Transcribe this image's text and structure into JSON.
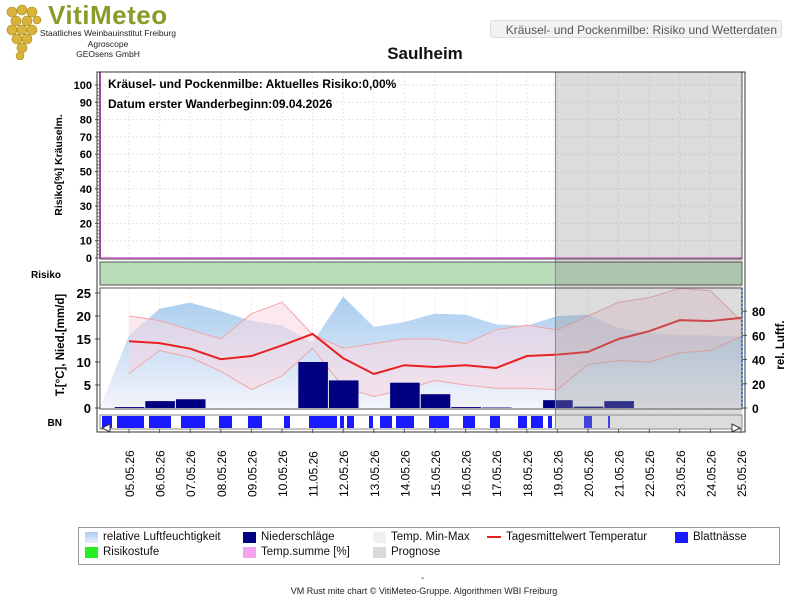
{
  "header": {
    "logo_text": "VitiMeteo",
    "org_lines": [
      "Staatliches Weinbauinstitut Freiburg",
      "Agroscope",
      "GEOsens GmbH"
    ],
    "page_label": "Kräusel- und Pockenmilbe: Risiko und Wetterdaten"
  },
  "chart_data": {
    "type": "line",
    "title": "Saulheim",
    "annotations": {
      "risk_text": "Kräusel- und Pockenmilbe: Aktuelles Risiko:0,00%",
      "date_text": "Datum erster Wanderbeginn:09.04.2026"
    },
    "x": [
      "05.05.26",
      "06.05.26",
      "07.05.26",
      "08.05.26",
      "09.05.26",
      "10.05.26",
      "11.05.26",
      "12.05.26",
      "13.05.26",
      "14.05.26",
      "15.05.26",
      "16.05.26",
      "17.05.26",
      "18.05.26",
      "19.05.26",
      "20.05.26",
      "21.05.26",
      "22.05.26",
      "23.05.26",
      "24.05.26",
      "25.05.26"
    ],
    "forecast_from": "19.05.26",
    "risk_panel": {
      "ylabel": "Risiko[%] Kräuselm.",
      "ylim": [
        0,
        100
      ],
      "yticks": [
        0,
        10,
        20,
        30,
        40,
        50,
        60,
        70,
        80,
        90,
        100
      ],
      "risk_values": [
        0,
        0,
        0,
        0,
        0,
        0,
        0,
        0,
        0,
        0,
        0,
        0,
        0,
        0,
        0,
        0,
        0,
        0,
        0,
        0,
        0
      ]
    },
    "risk_band_label": "Risiko",
    "weather_panel": {
      "ylabel_left": "T.[°C], Nied.[mm/d]",
      "ylabel_right": "rel. Luftf.",
      "ylim_left": [
        0,
        25
      ],
      "yticks_left": [
        0,
        5,
        10,
        15,
        20,
        25
      ],
      "ylim_right": [
        0,
        95
      ],
      "yticks_right": [
        0,
        20,
        40,
        60,
        80
      ],
      "series": [
        {
          "name": "Tagesmittelwert Temperatur",
          "color": "#e82020",
          "values": [
            14.5,
            14.1,
            12.9,
            10.6,
            11.3,
            13.6,
            16.1,
            10.8,
            7.4,
            9.3,
            8.9,
            9.3,
            8.7,
            11.3,
            11.6,
            12.2,
            15,
            16.7,
            19.1,
            18.9,
            19.6
          ]
        },
        {
          "name": "Temp. Min-Max (Min)",
          "color": "#f3a5a5",
          "values": [
            7.5,
            12.5,
            11,
            8,
            4,
            7,
            13,
            4.5,
            2.5,
            4,
            6,
            5,
            4.3,
            4.3,
            4,
            9.5,
            10.3,
            10,
            12,
            12.5,
            15.5
          ]
        },
        {
          "name": "Temp. Min-Max (Max)",
          "color": "#f3a5a5",
          "values": [
            20,
            19,
            17,
            15,
            20.5,
            23,
            16,
            13,
            14,
            15,
            15,
            14,
            17,
            18,
            17,
            20,
            23,
            24,
            26,
            25.5,
            19
          ]
        },
        {
          "name": "relative Luftfeuchtigkeit",
          "color": "#a8cdef",
          "values": [
            60,
            82,
            87,
            80,
            72,
            68,
            54,
            92,
            67,
            71,
            78,
            77,
            69,
            68,
            76,
            77,
            66,
            62,
            60,
            60,
            59
          ]
        }
      ],
      "bars": {
        "name": "Niederschläge",
        "color": "#000080",
        "values": [
          0.2,
          1.5,
          1.9,
          0,
          0,
          0,
          10,
          6,
          0,
          5.5,
          3,
          0.2,
          0.1,
          0,
          1.7,
          0.3,
          1.5,
          0,
          0,
          0,
          0
        ]
      }
    },
    "leaf_wetness": {
      "label": "BN",
      "color": "#1a1aff"
    },
    "legend": [
      {
        "label": "relative Luftfeuchtigkeit",
        "color": "#a8cdef"
      },
      {
        "label": "Niederschläge",
        "color": "#000080"
      },
      {
        "label": "Temp. Min-Max",
        "color": "#f0f0f0"
      },
      {
        "label": "Tagesmittelwert Temperatur",
        "color": "#e82020"
      },
      {
        "label": "Blattnässe",
        "color": "#1a1aff"
      },
      {
        "label": "Risikostufe",
        "color": "#22ee22"
      },
      {
        "label": "Temp.summe [%]",
        "color": "#f5a5f0"
      },
      {
        "label": "Prognose",
        "color": "#d9d9d9"
      }
    ]
  },
  "footer": {
    "dash": "-",
    "credit": "VM Rust mite chart © VitiMeteo-Gruppe. Algorithmen WBI Freiburg"
  }
}
